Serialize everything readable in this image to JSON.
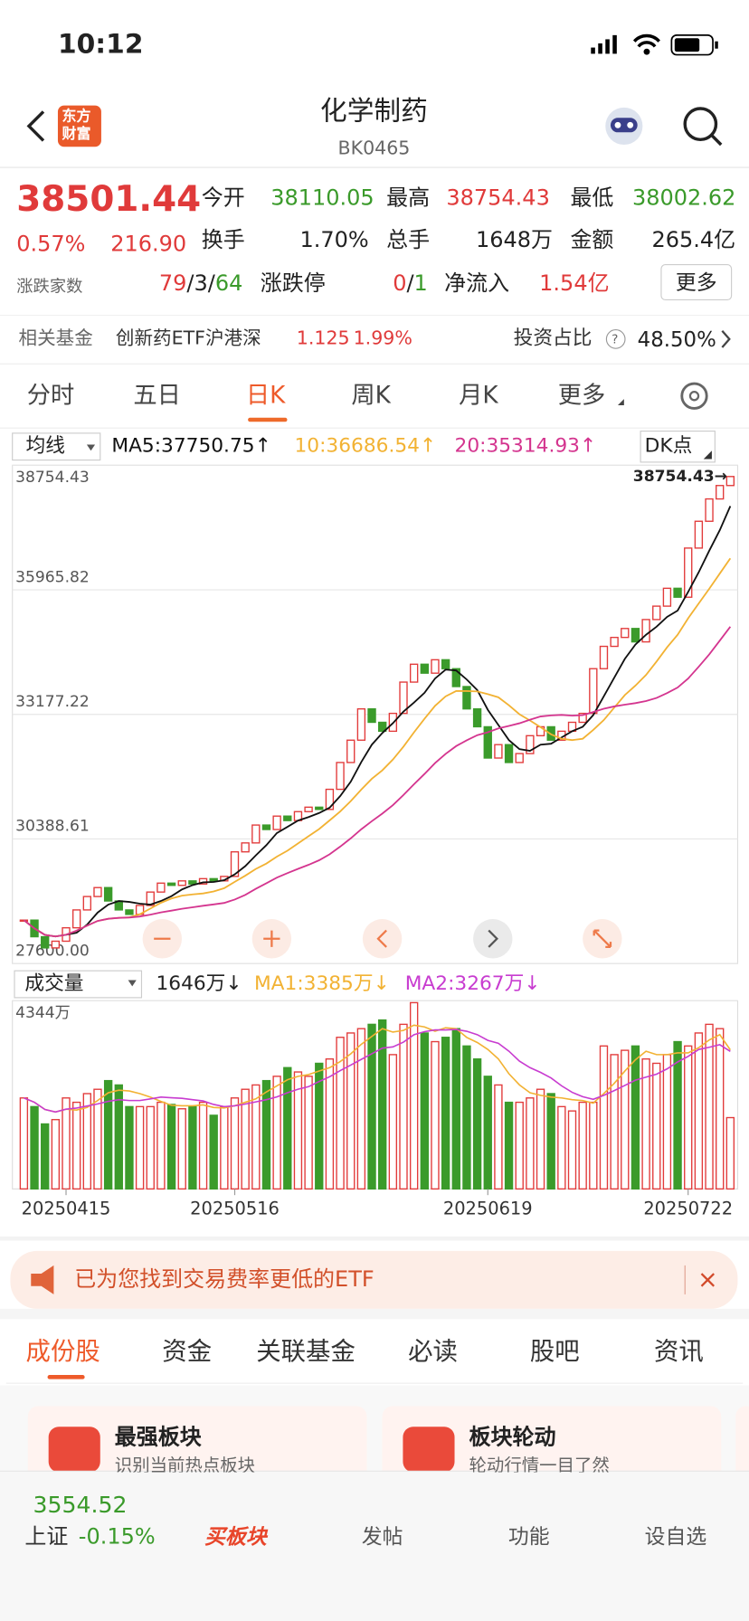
{
  "status": {
    "time": "10:12"
  },
  "header": {
    "logo": [
      "东方",
      "财富"
    ],
    "title": "化学制药",
    "code": "BK0465"
  },
  "quote": {
    "price": "38501.44",
    "change_pct": "0.57%",
    "change": "216.90",
    "stats": [
      {
        "label": "今开",
        "value": "38110.05"
      },
      {
        "label": "最高",
        "value": "38754.43"
      },
      {
        "label": "最低",
        "value": "38002.62"
      },
      {
        "label": "换手",
        "value": "1.70%"
      },
      {
        "label": "总手",
        "value": "1648万"
      },
      {
        "label": "金额",
        "value": "265.4亿"
      }
    ],
    "breadth": {
      "label": "涨跌家数",
      "up": "79",
      "sep": "/",
      "flat": "3",
      "down": "64"
    },
    "limit": {
      "label": "涨跌停",
      "up": "0",
      "sep": "/",
      "down": "1"
    },
    "inflow": {
      "label": "净流入",
      "value": "1.54亿"
    },
    "more": "更多"
  },
  "fund": {
    "label": "相关基金",
    "name": "创新药ETF沪港深",
    "price": "1.125",
    "change": "1.99%",
    "ratio_label": "投资占比",
    "help": "?",
    "ratio": "48.50%"
  },
  "period_tabs": [
    "分时",
    "五日",
    "日K",
    "周K",
    "月K",
    "更多"
  ],
  "ma_legend": {
    "selector": "均线",
    "ma5": "MA5:37750.75↑",
    "ma10": "10:36686.54↑",
    "ma20": "20:35314.93↑",
    "indicator": "DK点"
  },
  "volume_legend": {
    "selector": "成交量",
    "volume": "1646万↓",
    "ma1": "MA1:3385万↓",
    "ma2": "MA2:3267万↓"
  },
  "chart_data": {
    "type": "candlestick",
    "closes": [
      28572,
      28200,
      27950,
      28100,
      28400,
      28800,
      29100,
      29300,
      29000,
      28800,
      28700,
      28900,
      29200,
      29400,
      29350,
      29450,
      29380,
      29500,
      29450,
      29550,
      30100,
      30300,
      30700,
      30600,
      30900,
      30800,
      31000,
      31100,
      31050,
      31500,
      32100,
      32600,
      33300,
      33000,
      32800,
      33200,
      33900,
      34300,
      34100,
      34400,
      34200,
      33800,
      33300,
      32900,
      32200,
      32500,
      32100,
      32300,
      32700,
      32900,
      32600,
      32800,
      33000,
      33200,
      34200,
      34700,
      34900,
      35100,
      34800,
      35300,
      35600,
      36000,
      35800,
      36900,
      37500,
      38000,
      38300,
      38501.44
    ],
    "volumes": [
      2100,
      1900,
      1500,
      1600,
      2100,
      2000,
      2200,
      2300,
      2500,
      2400,
      1900,
      1900,
      1900,
      2000,
      1950,
      1850,
      1900,
      2000,
      1700,
      1900,
      2100,
      2300,
      2400,
      2500,
      2600,
      2800,
      2700,
      2600,
      2900,
      3000,
      3500,
      3600,
      3700,
      3800,
      3900,
      3100,
      3800,
      4300,
      3600,
      3400,
      3500,
      3700,
      3300,
      3000,
      2600,
      2400,
      2000,
      2000,
      2100,
      2300,
      2200,
      1900,
      1800,
      2000,
      2000,
      3300,
      3100,
      3200,
      3300,
      3000,
      2900,
      3100,
      3400,
      3300,
      3600,
      3800,
      3700,
      1646
    ],
    "dates": [
      null,
      null,
      null,
      null,
      "20250415",
      null,
      null,
      null,
      null,
      null,
      null,
      null,
      null,
      null,
      null,
      null,
      null,
      null,
      null,
      null,
      "20250516",
      null,
      null,
      null,
      null,
      null,
      null,
      null,
      null,
      null,
      null,
      null,
      null,
      null,
      null,
      null,
      null,
      null,
      null,
      null,
      null,
      null,
      null,
      null,
      "20250619",
      null,
      null,
      null,
      null,
      null,
      null,
      null,
      null,
      null,
      null,
      null,
      null,
      null,
      null,
      null,
      null,
      null,
      null,
      "20250722",
      null,
      null,
      null,
      null
    ],
    "ylim": [
      27600,
      38754.43
    ],
    "yticks": [
      {
        "value": 27600,
        "label": "27600.00"
      },
      30388.61,
      33177.22,
      35965.82,
      38754.43
    ],
    "vlim": [
      0,
      4344
    ],
    "vticks": [
      {
        "value": 4344,
        "label": "4344万"
      }
    ],
    "high_marker": "38754.43→",
    "up_color": "#e23b3b",
    "down_color": "#3b9b2b",
    "ma_colors": [
      "#111111",
      "#f2b233",
      "#d4358f"
    ],
    "volume_ma_colors": [
      "#f2b233",
      "#c83cd0"
    ],
    "grid": true
  },
  "banner": {
    "text": "已为您找到交易费率更低的ETF"
  },
  "section_tabs": [
    "成份股",
    "资金",
    "关联基金",
    "必读",
    "股吧",
    "资讯"
  ],
  "cards": [
    {
      "title": "最强板块",
      "subtitle": "识别当前热点板块"
    },
    {
      "title": "板块轮动",
      "subtitle": "轮动行情一目了然"
    }
  ],
  "bottom_nav": {
    "index_value": "3554.52",
    "index_name": "上证",
    "index_change": "-0.15%",
    "items": [
      "买板块",
      "发帖",
      "功能",
      "设自选"
    ]
  }
}
